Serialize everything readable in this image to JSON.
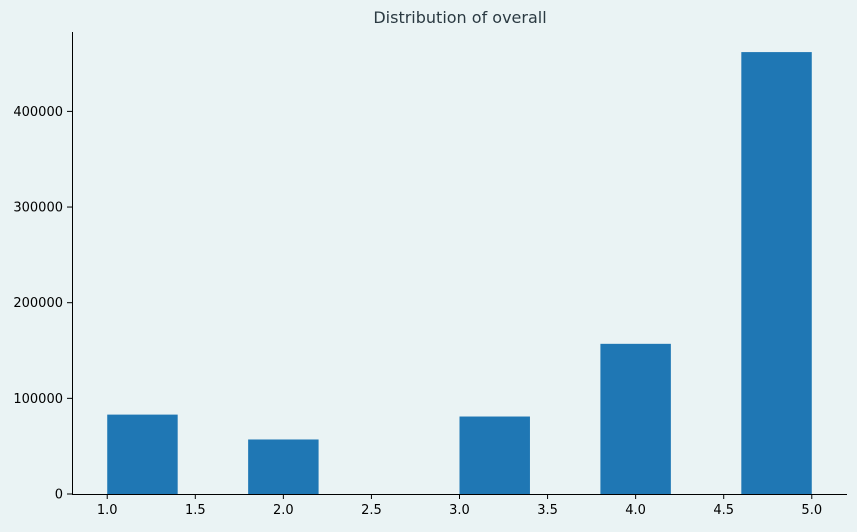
{
  "chart_data": {
    "type": "bar",
    "title": "Distribution of overall",
    "xlabel": "",
    "ylabel": "",
    "xlim": [
      0.8,
      5.2
    ],
    "ylim": [
      0,
      483000
    ],
    "xticks": [
      1.0,
      1.5,
      2.0,
      2.5,
      3.0,
      3.5,
      4.0,
      4.5,
      5.0
    ],
    "xtick_labels": [
      "1.0",
      "1.5",
      "2.0",
      "2.5",
      "3.0",
      "3.5",
      "4.0",
      "4.5",
      "5.0"
    ],
    "yticks": [
      0,
      100000,
      200000,
      300000,
      400000
    ],
    "ytick_labels": [
      "0",
      "100000",
      "200000",
      "300000",
      "400000"
    ],
    "bins": [
      {
        "start": 1.0,
        "end": 1.4,
        "value": 83000
      },
      {
        "start": 1.4,
        "end": 1.8,
        "value": 0
      },
      {
        "start": 1.8,
        "end": 2.2,
        "value": 57000
      },
      {
        "start": 2.2,
        "end": 2.6,
        "value": 0
      },
      {
        "start": 2.6,
        "end": 3.0,
        "value": 0
      },
      {
        "start": 3.0,
        "end": 3.4,
        "value": 81000
      },
      {
        "start": 3.4,
        "end": 3.8,
        "value": 0
      },
      {
        "start": 3.8,
        "end": 4.2,
        "value": 157000
      },
      {
        "start": 4.2,
        "end": 4.6,
        "value": 0
      },
      {
        "start": 4.6,
        "end": 5.0,
        "value": 462000
      }
    ],
    "grid": false,
    "colors": {
      "background": "#eaf3f4",
      "bar": "#1f77b4",
      "axis": "#000000",
      "title": "#2b3a42"
    }
  }
}
